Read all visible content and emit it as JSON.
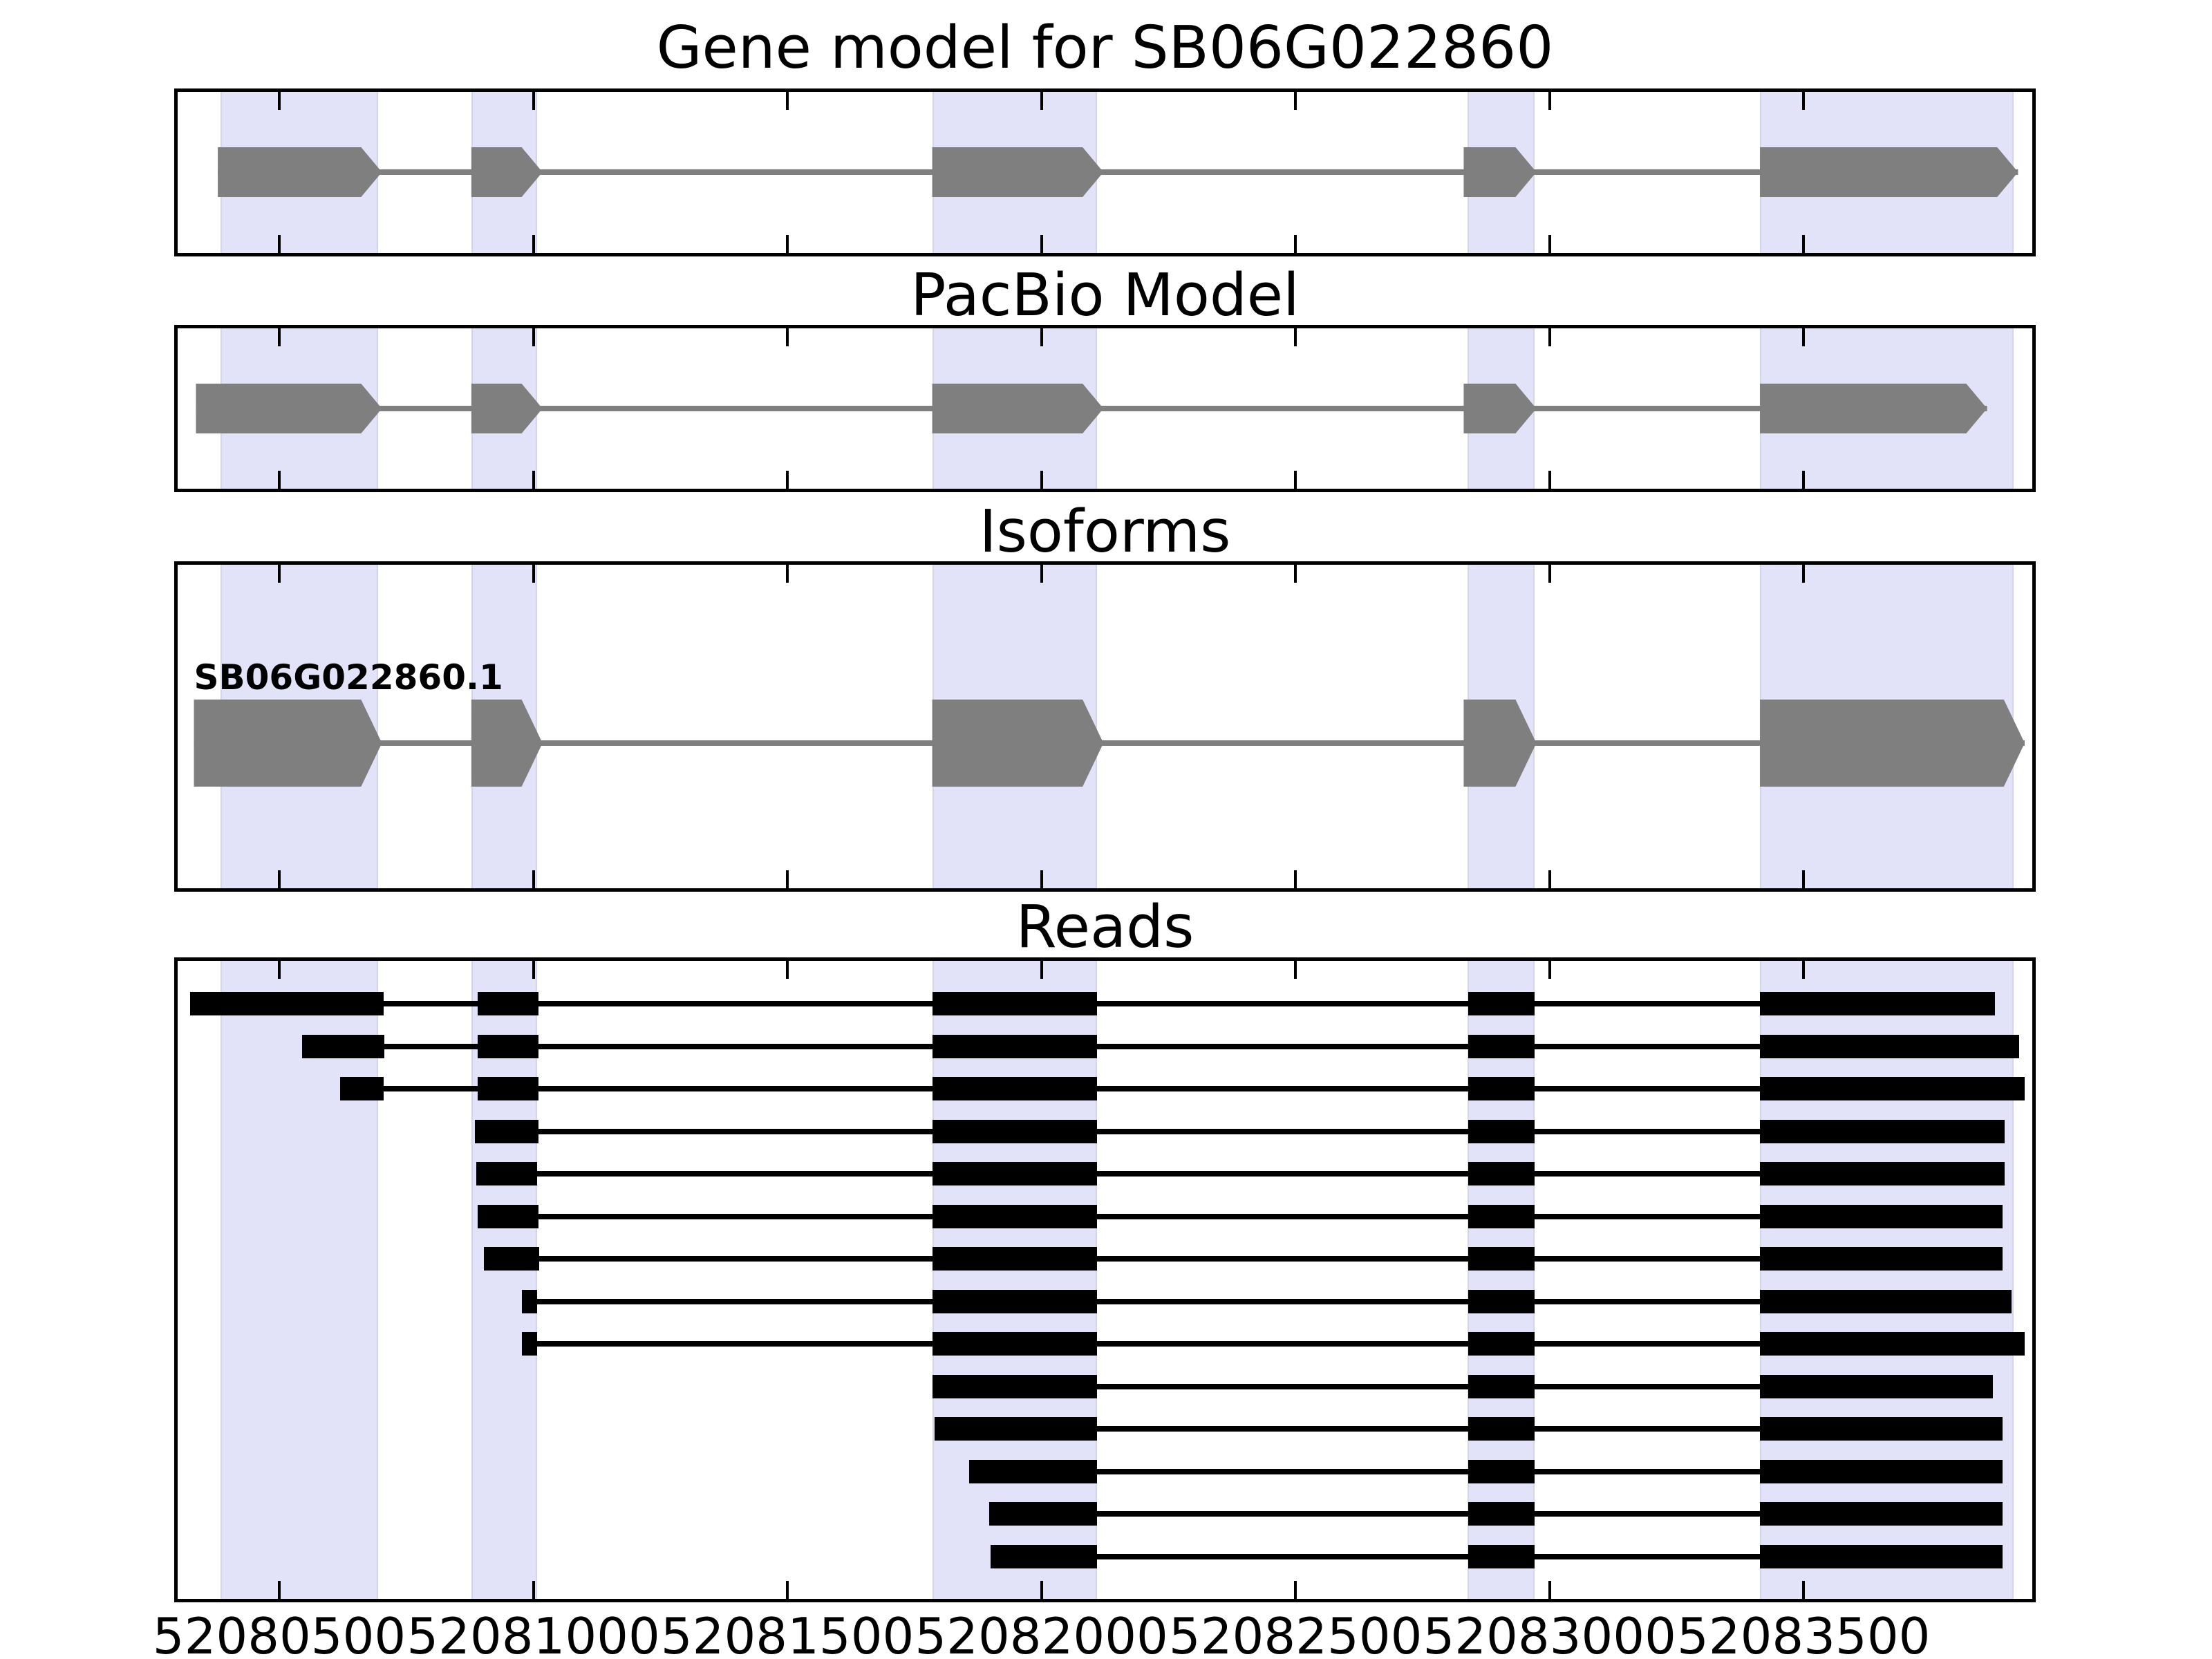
{
  "chart_data": {
    "type": "genomic-track-plot",
    "titles": {
      "panel1": "Gene model for SB06G022860",
      "panel2": "PacBio Model",
      "panel3": "Isoforms",
      "panel4": "Reads"
    },
    "isoform_label": "SB06G022860.1",
    "axis": {
      "domain_start": 52080300,
      "domain_end": 52083950,
      "tick_values": [
        52080500,
        52081000,
        52081500,
        52082000,
        52082500,
        52083000,
        52083500
      ],
      "tick_labels": [
        "52080500",
        "52081000",
        "52081500",
        "52082000",
        "52082500",
        "52083000",
        "52083500"
      ]
    },
    "colors": {
      "highlight_fill": "#E2E2F8",
      "highlight_edge": "#D4D4EC",
      "model_fill": "#7f7f7f",
      "intron_line": "#7f7f7f",
      "read_fill": "#000000",
      "border": "#000000",
      "background": "#FFFFFF",
      "text": "#000000"
    },
    "highlights": [
      {
        "start": 52080385,
        "end": 52080695
      },
      {
        "start": 52080878,
        "end": 52081007
      },
      {
        "start": 52081785,
        "end": 52082110
      },
      {
        "start": 52082838,
        "end": 52082970
      },
      {
        "start": 52083414,
        "end": 52083913
      }
    ],
    "gene_model": {
      "exons": [
        {
          "start": 52080379,
          "end": 52080702
        },
        {
          "start": 52080878,
          "end": 52081018
        },
        {
          "start": 52081785,
          "end": 52082122
        },
        {
          "start": 52082831,
          "end": 52082974
        },
        {
          "start": 52083414,
          "end": 52083922
        }
      ]
    },
    "pacbio_model": {
      "exons": [
        {
          "start": 52080336,
          "end": 52080702
        },
        {
          "start": 52080878,
          "end": 52081018
        },
        {
          "start": 52081785,
          "end": 52082122
        },
        {
          "start": 52082831,
          "end": 52082974
        },
        {
          "start": 52083414,
          "end": 52083861
        }
      ]
    },
    "isoforms": [
      {
        "label": "SB06G022860.1",
        "exons": [
          {
            "start": 52080332,
            "end": 52080702
          },
          {
            "start": 52080878,
            "end": 52081018
          },
          {
            "start": 52081785,
            "end": 52082122
          },
          {
            "start": 52082831,
            "end": 52082974
          },
          {
            "start": 52083414,
            "end": 52083935
          }
        ]
      }
    ],
    "reads": [
      {
        "exons": [
          [
            52080325,
            52080705
          ],
          [
            52080890,
            52081010
          ],
          [
            52081785,
            52082110
          ],
          [
            52082840,
            52082970
          ],
          [
            52083414,
            52083877
          ]
        ]
      },
      {
        "exons": [
          [
            52080545,
            52080707
          ],
          [
            52080890,
            52081010
          ],
          [
            52081785,
            52082110
          ],
          [
            52082840,
            52082970
          ],
          [
            52083414,
            52083924
          ]
        ]
      },
      {
        "exons": [
          [
            52080620,
            52080705
          ],
          [
            52080890,
            52081010
          ],
          [
            52081785,
            52082110
          ],
          [
            52082840,
            52082970
          ],
          [
            52083414,
            52083935
          ]
        ]
      },
      {
        "exons": [
          [
            52080885,
            52081010
          ],
          [
            52081785,
            52082110
          ],
          [
            52082840,
            52082970
          ],
          [
            52083414,
            52083895
          ]
        ]
      },
      {
        "exons": [
          [
            52080888,
            52081008
          ],
          [
            52081785,
            52082110
          ],
          [
            52082840,
            52082970
          ],
          [
            52083414,
            52083895
          ]
        ]
      },
      {
        "exons": [
          [
            52080890,
            52081010
          ],
          [
            52081785,
            52082110
          ],
          [
            52082840,
            52082970
          ],
          [
            52083414,
            52083892
          ]
        ]
      },
      {
        "exons": [
          [
            52080902,
            52081011
          ],
          [
            52081785,
            52082110
          ],
          [
            52082840,
            52082970
          ],
          [
            52083414,
            52083891
          ]
        ]
      },
      {
        "exons": [
          [
            52080977,
            52081008
          ],
          [
            52081785,
            52082110
          ],
          [
            52082840,
            52082970
          ],
          [
            52083414,
            52083909
          ]
        ]
      },
      {
        "exons": [
          [
            52080977,
            52081008
          ],
          [
            52081785,
            52082110
          ],
          [
            52082840,
            52082970
          ],
          [
            52083414,
            52083935
          ]
        ]
      },
      {
        "exons": [
          [
            52081785,
            52082110
          ],
          [
            52082840,
            52082970
          ],
          [
            52083414,
            52083872
          ]
        ]
      },
      {
        "exons": [
          [
            52081790,
            52082110
          ],
          [
            52082840,
            52082970
          ],
          [
            52083414,
            52083892
          ]
        ]
      },
      {
        "exons": [
          [
            52081857,
            52082110
          ],
          [
            52082840,
            52082970
          ],
          [
            52083414,
            52083892
          ]
        ]
      },
      {
        "exons": [
          [
            52081897,
            52082110
          ],
          [
            52082840,
            52082970
          ],
          [
            52083414,
            52083892
          ]
        ]
      },
      {
        "exons": [
          [
            52081900,
            52082110
          ],
          [
            52082840,
            52082970
          ],
          [
            52083414,
            52083892
          ]
        ]
      }
    ]
  }
}
